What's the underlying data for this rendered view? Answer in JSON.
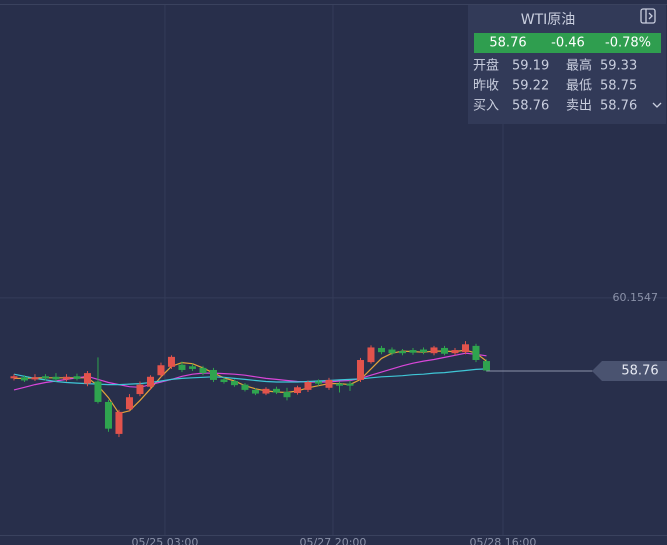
{
  "chart_data": {
    "type": "candlestick",
    "open": [
      58.62,
      58.64,
      58.6,
      58.66,
      58.65,
      58.6,
      58.66,
      58.52,
      58.56,
      58.17,
      57.56,
      58.03,
      58.32,
      58.46,
      58.68,
      58.84,
      58.88,
      58.85,
      58.82,
      58.78,
      58.6,
      58.57,
      58.5,
      58.4,
      58.33,
      58.42,
      58.36,
      58.34,
      58.4,
      58.56,
      58.44,
      58.52,
      58.52,
      58.59,
      58.93,
      59.2,
      59.17,
      59.14,
      59.16,
      59.17,
      59.1,
      59.2,
      59.1,
      59.12,
      59.24,
      58.95
    ],
    "high": [
      58.7,
      58.68,
      58.7,
      58.7,
      58.72,
      58.7,
      58.71,
      58.76,
      59.02,
      58.21,
      58.02,
      58.32,
      58.56,
      58.68,
      58.92,
      59.06,
      58.94,
      58.9,
      58.86,
      58.82,
      58.64,
      58.6,
      58.53,
      58.43,
      58.45,
      58.46,
      58.44,
      58.48,
      58.58,
      58.6,
      58.63,
      58.56,
      58.58,
      59.01,
      59.25,
      59.24,
      59.21,
      59.18,
      59.2,
      59.21,
      59.24,
      59.24,
      59.2,
      59.33,
      59.28,
      58.98
    ],
    "low": [
      58.58,
      58.55,
      58.57,
      58.58,
      58.56,
      58.56,
      58.58,
      58.47,
      58.14,
      57.6,
      57.5,
      58.0,
      58.28,
      58.4,
      58.64,
      58.8,
      58.74,
      58.76,
      58.68,
      58.55,
      58.52,
      58.46,
      58.37,
      58.3,
      58.3,
      58.32,
      58.2,
      58.31,
      58.36,
      58.48,
      58.4,
      58.35,
      58.38,
      58.55,
      58.9,
      59.08,
      59.06,
      59.06,
      59.07,
      59.08,
      59.06,
      59.06,
      59.06,
      59.08,
      58.93,
      58.75
    ],
    "close": [
      58.66,
      58.58,
      58.64,
      58.62,
      58.6,
      58.65,
      58.61,
      58.72,
      58.17,
      57.66,
      57.98,
      58.26,
      58.5,
      58.65,
      58.87,
      59.03,
      58.78,
      58.8,
      58.72,
      58.59,
      58.55,
      58.49,
      58.4,
      58.33,
      58.42,
      58.35,
      58.26,
      58.45,
      58.55,
      58.52,
      58.59,
      58.48,
      58.48,
      58.97,
      59.21,
      59.12,
      59.1,
      59.1,
      59.11,
      59.12,
      59.21,
      59.09,
      59.16,
      59.27,
      58.97,
      58.77
    ],
    "up_color": "#e2534c",
    "down_color": "#2fa44f",
    "series": [
      {
        "color": "#e3a33a",
        "values": [
          58.62,
          58.62,
          58.63,
          58.63,
          58.63,
          58.63,
          58.63,
          58.63,
          58.48,
          58.25,
          57.95,
          58.0,
          58.2,
          58.42,
          58.65,
          58.85,
          58.92,
          58.9,
          58.82,
          58.72,
          58.63,
          58.57,
          58.48,
          58.42,
          58.38,
          58.36,
          58.35,
          58.38,
          58.44,
          58.48,
          58.52,
          58.52,
          58.5,
          58.6,
          58.8,
          59.0,
          59.1,
          59.14,
          59.13,
          59.12,
          59.14,
          59.14,
          59.13,
          59.16,
          59.1,
          58.95
        ]
      },
      {
        "color": "#d946d9",
        "values": [
          58.4,
          58.45,
          58.5,
          58.54,
          58.57,
          58.6,
          58.63,
          58.66,
          58.6,
          58.54,
          58.5,
          58.46,
          58.45,
          58.5,
          58.55,
          58.6,
          58.66,
          58.7,
          58.72,
          58.72,
          58.71,
          58.7,
          58.68,
          58.65,
          58.62,
          58.6,
          58.58,
          58.56,
          58.55,
          58.55,
          58.55,
          58.57,
          58.58,
          58.62,
          58.68,
          58.74,
          58.8,
          58.86,
          58.91,
          58.95,
          58.98,
          59.02,
          59.06,
          59.1,
          59.08,
          59.05
        ]
      },
      {
        "color": "#3fc6d6",
        "values": [
          58.7,
          58.66,
          58.62,
          58.59,
          58.56,
          58.54,
          58.53,
          58.52,
          58.51,
          58.5,
          58.5,
          58.51,
          58.52,
          58.54,
          58.57,
          58.6,
          58.62,
          58.63,
          58.64,
          58.65,
          58.64,
          58.62,
          58.6,
          58.58,
          58.56,
          58.55,
          58.55,
          58.55,
          58.56,
          58.57,
          58.58,
          58.59,
          58.6,
          58.61,
          58.63,
          58.65,
          58.66,
          58.67,
          58.69,
          58.7,
          58.72,
          58.73,
          58.75,
          58.77,
          58.79,
          58.8
        ]
      }
    ],
    "last_price": 58.76,
    "xlim": [
      -1.33,
      62.19
    ],
    "xticks": [
      {
        "value": 14.38,
        "label": "05/25 03:00"
      },
      {
        "value": 30.38,
        "label": "05/27 20:00"
      },
      {
        "value": 46.57,
        "label": "05/28 16:00"
      }
    ],
    "ylim": [
      55.44,
      65.84
    ],
    "yticks": [
      60.1547
    ],
    "grid": true
  },
  "quote": {
    "title": "WTI原油",
    "price": "58.76",
    "change": "-0.46",
    "change_pct": "-0.78%",
    "rows": [
      [
        "开盘",
        "59.19",
        "最高",
        "59.33"
      ],
      [
        "昨收",
        "59.22",
        "最低",
        "58.75"
      ],
      [
        "买入",
        "58.76",
        "卖出",
        "58.76"
      ]
    ]
  }
}
